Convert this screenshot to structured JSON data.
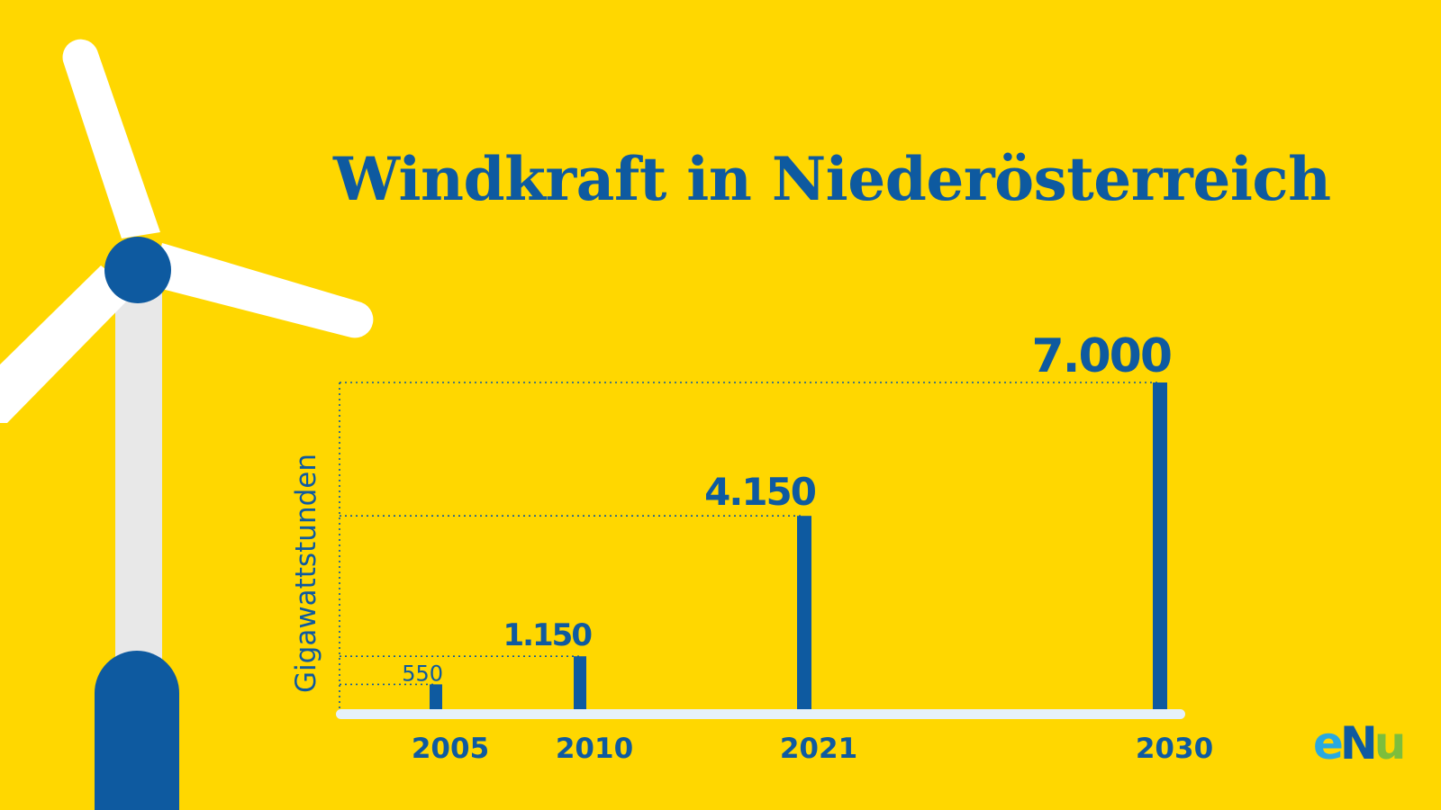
{
  "title": "Windkraft in Niederösterreich",
  "colors": {
    "background": "#FFD700",
    "accent": "#0E5AA0",
    "axis": "#E6F1FA",
    "tower": "#E8E8E8",
    "blade": "#FFFFFF"
  },
  "chart_data": {
    "type": "bar",
    "title": "Windkraft in Niederösterreich",
    "ylabel": "Gigawattstunden",
    "xlabel": "",
    "categories": [
      "2005",
      "2010",
      "2021",
      "2030"
    ],
    "values": [
      550,
      1150,
      4150,
      7000
    ],
    "value_labels": [
      "550",
      "1.150",
      "4.150",
      "7.000"
    ],
    "grid": false,
    "reference_lines": "dotted guide lines from each value to the y-axis"
  },
  "logo": {
    "parts": [
      "e",
      "N",
      "u"
    ]
  }
}
